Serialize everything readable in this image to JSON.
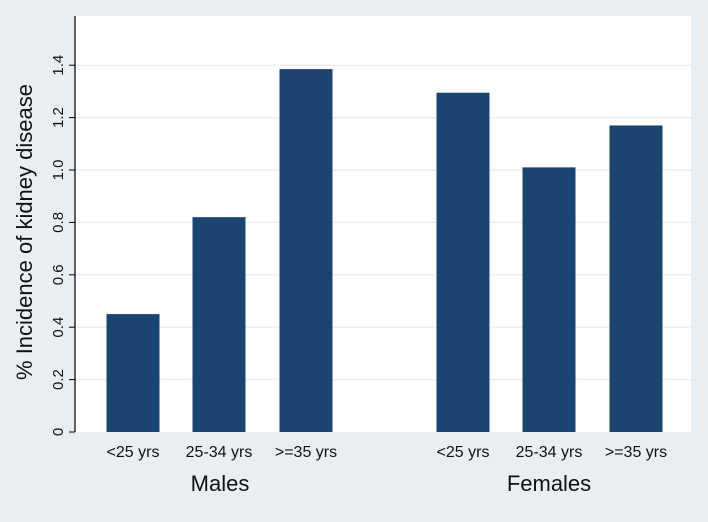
{
  "chart_data": {
    "type": "bar",
    "title": "",
    "ylabel": "% Incidence of kidney disease",
    "xlabel": "",
    "ylim": [
      0,
      1.55
    ],
    "yticks": [
      0,
      0.2,
      0.4,
      0.6,
      0.8,
      1.0,
      1.2,
      1.4
    ],
    "ytick_labels": [
      "0",
      "0.2",
      "0.4",
      "0.6",
      "0.8",
      "1.0",
      "1.2",
      "1.4"
    ],
    "grid": true,
    "groups": [
      {
        "name": "Males",
        "categories": [
          "<25 yrs",
          "25-34 yrs",
          ">=35 yrs"
        ],
        "values": [
          0.45,
          0.82,
          1.385
        ]
      },
      {
        "name": "Females",
        "categories": [
          "<25 yrs",
          "25-34 yrs",
          ">=35 yrs"
        ],
        "values": [
          1.295,
          1.01,
          1.17
        ]
      }
    ],
    "colors": {
      "bar": "#1b4570",
      "plot_background": "#ffffff",
      "outer_background": "#e8eef2",
      "grid": "#e6ecf0"
    }
  }
}
